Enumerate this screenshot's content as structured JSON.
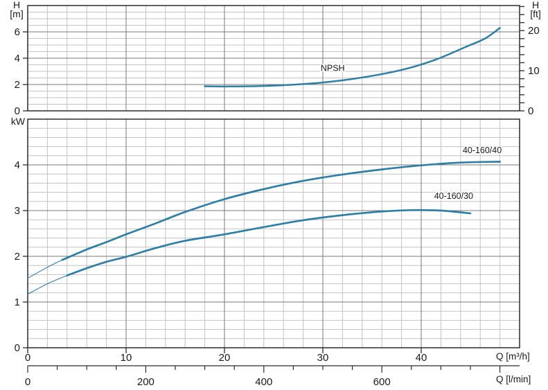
{
  "colors": {
    "curve": "#2e7ea6",
    "grid_minor": "#c2c2c2",
    "grid_major": "#787878",
    "axis": "#2b2b2b",
    "text": "#1a1a1a"
  },
  "chart_data": [
    {
      "panel": "npsh",
      "type": "line",
      "ylabel_left": [
        "H",
        "[m]"
      ],
      "ylabel_right": [
        "H",
        "[ft]"
      ],
      "ylim": [
        0,
        8
      ],
      "yticks": [
        0,
        2,
        4,
        6
      ],
      "y_minor_step": 0.5,
      "right_unit": "ft",
      "right_ticks_step": 2,
      "right_ticks_max": 26,
      "right_tick_labels": [
        0,
        10,
        20
      ],
      "grid": true,
      "series": [
        {
          "name": "NPSH",
          "label": "NPSH",
          "label_at": [
            31,
            3.02
          ],
          "points": [
            [
              18,
              1.87
            ],
            [
              20.5,
              1.85
            ],
            [
              23.5,
              1.88
            ],
            [
              26.5,
              1.97
            ],
            [
              29.5,
              2.12
            ],
            [
              32.5,
              2.37
            ],
            [
              35.5,
              2.72
            ],
            [
              38.5,
              3.2
            ],
            [
              41.5,
              3.9
            ],
            [
              44.5,
              4.85
            ],
            [
              46.5,
              5.5
            ],
            [
              48,
              6.3
            ]
          ]
        }
      ]
    },
    {
      "panel": "power",
      "type": "line",
      "ylabel": "kW",
      "ylim": [
        0,
        5
      ],
      "yticks": [
        0,
        1,
        2,
        3,
        4
      ],
      "y_minor_step": 0.2,
      "grid": true,
      "series": [
        {
          "name": "40-160/40",
          "label": "40-160/40",
          "label_at": [
            46.2,
            4.26
          ],
          "thin_until": 3.5,
          "points": [
            [
              0,
              1.52
            ],
            [
              2,
              1.76
            ],
            [
              3.5,
              1.92
            ],
            [
              6,
              2.15
            ],
            [
              8,
              2.31
            ],
            [
              10,
              2.48
            ],
            [
              13,
              2.72
            ],
            [
              16,
              2.97
            ],
            [
              20,
              3.25
            ],
            [
              24,
              3.47
            ],
            [
              28,
              3.65
            ],
            [
              32,
              3.79
            ],
            [
              36,
              3.9
            ],
            [
              40,
              3.99
            ],
            [
              44,
              4.05
            ],
            [
              48,
              4.07
            ]
          ]
        },
        {
          "name": "40-160/30",
          "label": "40-160/30",
          "label_at": [
            43.3,
            3.26
          ],
          "thin_until": 4,
          "points": [
            [
              0,
              1.17
            ],
            [
              2,
              1.4
            ],
            [
              4,
              1.58
            ],
            [
              6,
              1.74
            ],
            [
              8,
              1.88
            ],
            [
              10,
              1.99
            ],
            [
              13,
              2.18
            ],
            [
              16,
              2.34
            ],
            [
              20,
              2.48
            ],
            [
              24,
              2.64
            ],
            [
              28,
              2.79
            ],
            [
              32,
              2.9
            ],
            [
              36,
              2.98
            ],
            [
              39,
              3.01
            ],
            [
              42,
              3.0
            ],
            [
              45,
              2.94
            ]
          ]
        }
      ]
    }
  ],
  "x_axis": {
    "xlabel": "Q [m³/h]",
    "xlim": [
      0,
      50
    ],
    "major_ticks": [
      0,
      10,
      20,
      30,
      40
    ],
    "minor_step": 2
  },
  "x_axis_secondary": {
    "xlabel": "Q [l/min]",
    "major_ticks": [
      0,
      200,
      400,
      600
    ],
    "minor_step": 50,
    "max_tick": 800,
    "lmin_per_m3h": 16.6667
  }
}
